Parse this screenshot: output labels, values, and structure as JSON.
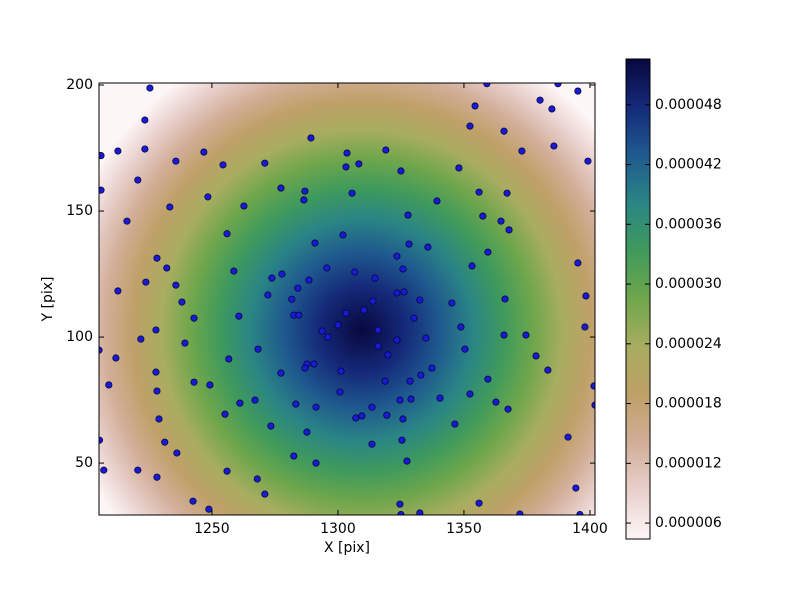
{
  "chart_data": {
    "type": "scatter",
    "xlabel": "X [pix]",
    "ylabel": "Y [pix]",
    "xlim": [
      1205.2,
      1402
    ],
    "ylim": [
      29.4,
      200.8
    ],
    "xticks": [
      1250,
      1300,
      1350,
      1400
    ],
    "yticks": [
      50,
      100,
      150,
      200
    ],
    "color": "#1a1ad0",
    "x": [
      1225.4,
      1206,
      1212.7,
      1223.4,
      1223.4,
      1220.6,
      1206,
      1216.3,
      1246.8,
      1254.4,
      1271,
      1235.7,
      1248.4,
      1233.3,
      1262.7,
      1289.3,
      1303.6,
      1303.2,
      1308.3,
      1319,
      1305.6,
      1325,
      1286.9,
      1286.5,
      1277.4,
      1256,
      1290.9,
      1302,
      1327.8,
      1328.2,
      1335.7,
      1339.3,
      1348,
      1352.4,
      1354.4,
      1359.1,
      1365.9,
      1373,
      1380.2,
      1384.9,
      1387.3,
      1395.2,
      1385.7,
      1399.2,
      1356,
      1367.1,
      1357.5,
      1364.7,
      1367.9,
      1359.5,
      1353.2,
      1366.3,
      1365.9,
      1374.6,
      1378.6,
      1383.3,
      1395.2,
      1398.4,
      1398,
      1401.6,
      1402,
      1391.3,
      1394.4,
      1396,
      1372.2,
      1356,
      1332.5,
      1324.6,
      1325,
      1325.4,
      1327.4,
      1325.8,
      1309.5,
      1313.5,
      1313.5,
      1319.4,
      1324.6,
      1329,
      1328.6,
      1332.9,
      1337.3,
      1340.5,
      1346.4,
      1352.4,
      1350.4,
      1348.8,
      1345.2,
      1359.5,
      1362.7,
      1367.5,
      1334.9,
      1332.5,
      1330.2,
      1326.2,
      1323.4,
      1323.4,
      1325.8,
      1314.7,
      1306.7,
      1295.6,
      1288.5,
      1284.1,
      1281.7,
      1282.5,
      1284.5,
      1273.8,
      1277.8,
      1272.2,
      1260.7,
      1258.7,
      1303.2,
      1310.3,
      1313.9,
      1300,
      1293.7,
      1296,
      1301.2,
      1287.7,
      1290.5,
      1286.9,
      1315.9,
      1315.9,
      1319.8,
      1323.4,
      1318.7,
      1300.8,
      1307.1,
      1291.3,
      1283.3,
      1287.7,
      1291.3,
      1282.5,
      1273.4,
      1267.1,
      1261.1,
      1255.2,
      1268.3,
      1256.7,
      1277.4,
      1249.2,
      1242.9,
      1239.3,
      1238.1,
      1235.7,
      1232.1,
      1228.2,
      1223.8,
      1227.8,
      1221.8,
      1212.7,
      1211.9,
      1209.1,
      1205.2,
      1205.4,
      1207.1,
      1220.6,
      1227.8,
      1228.2,
      1229,
      1231.3,
      1236.1,
      1228.2,
      1242.5,
      1248.8,
      1256,
      1268,
      1271,
      1242.9
    ],
    "values": [
      198.8,
      172,
      173.8,
      186.1,
      174.6,
      162.3,
      158.3,
      146,
      173.4,
      168.3,
      169,
      169.8,
      155.6,
      151.6,
      152,
      179,
      173,
      167.5,
      168.7,
      174.2,
      157.1,
      165.9,
      157.9,
      154.4,
      159.1,
      141,
      137.3,
      140.5,
      148.4,
      136.9,
      135.7,
      154,
      167.1,
      183.7,
      191.7,
      200.5,
      181.7,
      173.8,
      194,
      190.5,
      200.5,
      197.6,
      175.8,
      169.8,
      157.5,
      157.1,
      148,
      146,
      142.5,
      133.7,
      128.2,
      115.1,
      100.8,
      100.8,
      92.5,
      86.9,
      129.4,
      116.3,
      104,
      80.6,
      73,
      60.3,
      40.1,
      29.6,
      29.8,
      34.1,
      30.2,
      33.7,
      29.6,
      59.1,
      50.8,
      67.5,
      68.7,
      57.5,
      72.2,
      69,
      75,
      75.4,
      82.5,
      84.9,
      87.7,
      75.8,
      65.5,
      77.4,
      95.2,
      104,
      113.5,
      83.3,
      74.2,
      71.4,
      99.6,
      114.7,
      107.5,
      117.9,
      117.5,
      132.1,
      127,
      123.4,
      125.8,
      127.4,
      122.6,
      119.4,
      115,
      108.7,
      108.7,
      123.4,
      125,
      116.7,
      108.3,
      126.2,
      109.5,
      110.7,
      114.3,
      104.8,
      102.4,
      100,
      86.5,
      89.3,
      89.3,
      87.7,
      102.8,
      96.4,
      92.9,
      98.8,
      82.5,
      78.2,
      67.9,
      72.2,
      73.4,
      62.3,
      50,
      52.8,
      64.7,
      75,
      73.8,
      69.4,
      95.2,
      91.3,
      85.7,
      81,
      82.1,
      97.6,
      113.9,
      120.6,
      127.4,
      131.3,
      121.8,
      102.8,
      99.2,
      118.3,
      91.7,
      81,
      94.8,
      59.1,
      47.2,
      47.2,
      86.1,
      78.6,
      67.5,
      58.3,
      54,
      44.4,
      34.9,
      31.7,
      46.8,
      43.7,
      37.7,
      107.5
    ],
    "colorbar": {
      "lim": [
        4.4e-06,
        5.26e-05
      ],
      "ticks": [
        {
          "value": 6e-06,
          "label": "0.000006"
        },
        {
          "value": 1.2e-05,
          "label": "0.000012"
        },
        {
          "value": 1.8e-05,
          "label": "0.000018"
        },
        {
          "value": 2.4e-05,
          "label": "0.000024"
        },
        {
          "value": 3e-05,
          "label": "0.000030"
        },
        {
          "value": 3.6e-05,
          "label": "0.000036"
        },
        {
          "value": 4.2e-05,
          "label": "0.000042"
        },
        {
          "value": 4.8e-05,
          "label": "0.000048"
        }
      ],
      "colormap": [
        "#fdf6f6",
        "#e8d0cc",
        "#d2ae98",
        "#bfa068",
        "#a9ad60",
        "#6fa64c",
        "#3f9a5c",
        "#2a8585",
        "#1f5a8e",
        "#152a7a",
        "#08083e"
      ]
    }
  }
}
